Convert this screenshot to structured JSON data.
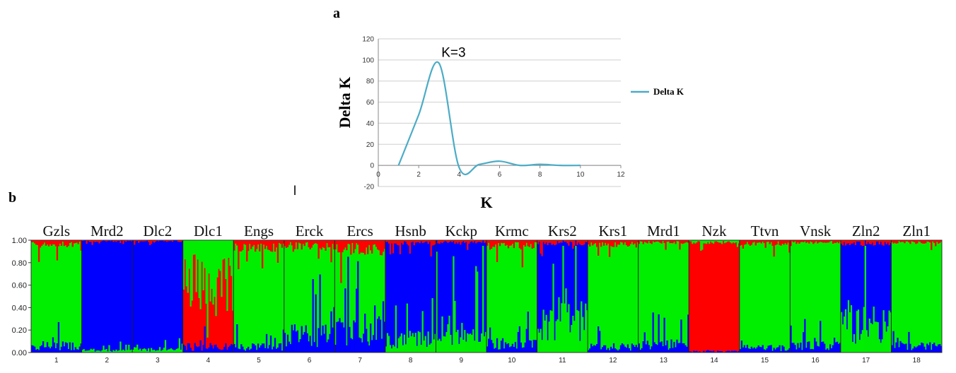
{
  "panels": {
    "a_label": "a",
    "b_label": "b",
    "stray_mark": "l"
  },
  "chart_data": [
    {
      "type": "line",
      "panel": "a",
      "title": "",
      "xlabel": "K",
      "ylabel": "Delta K",
      "xlim": [
        0,
        12
      ],
      "ylim": [
        -20,
        120
      ],
      "xticks": [
        "0",
        "2",
        "4",
        "6",
        "8",
        "10",
        "12"
      ],
      "yticks": [
        "-20",
        "0",
        "20",
        "40",
        "60",
        "80",
        "100",
        "120"
      ],
      "grid": true,
      "legend_position": "right",
      "series": [
        {
          "name": "Delta K",
          "color": "#4bacc6",
          "x": [
            1,
            2,
            3,
            4,
            5,
            6,
            7,
            8,
            9,
            10
          ],
          "y": [
            0,
            48,
            97,
            -2,
            1,
            4,
            0,
            1,
            0,
            0
          ]
        }
      ],
      "annotations": [
        {
          "text": "K=3",
          "x": 3.75,
          "y": 103
        }
      ]
    },
    {
      "type": "bar",
      "panel": "b",
      "subtype": "stacked-admixture",
      "yticks": [
        "0.00",
        "0.20",
        "0.40",
        "0.60",
        "0.80",
        "1.00"
      ],
      "ylim": [
        0,
        1
      ],
      "colors": {
        "cluster1": "#0000ff",
        "cluster2": "#00ee00",
        "cluster3": "#ff0000"
      },
      "categories": [
        {
          "num": "1",
          "label": "Gzls",
          "dominant": "cluster2",
          "share": [
            0.06,
            0.9,
            0.04
          ]
        },
        {
          "num": "2",
          "label": "Mrd2",
          "dominant": "cluster1",
          "share": [
            0.97,
            0.02,
            0.01
          ]
        },
        {
          "num": "3",
          "label": "Dlc2",
          "dominant": "cluster1",
          "share": [
            0.96,
            0.03,
            0.01
          ]
        },
        {
          "num": "4",
          "label": "Dlc1",
          "dominant": "cluster3",
          "share": [
            0.05,
            0.4,
            0.55
          ]
        },
        {
          "num": "5",
          "label": "Engs",
          "dominant": "cluster2",
          "share": [
            0.05,
            0.88,
            0.07
          ]
        },
        {
          "num": "6",
          "label": "Erck",
          "dominant": "cluster2",
          "share": [
            0.15,
            0.8,
            0.05
          ]
        },
        {
          "num": "7",
          "label": "Ercs",
          "dominant": "cluster2",
          "share": [
            0.2,
            0.72,
            0.08
          ]
        },
        {
          "num": "8",
          "label": "Hsnb",
          "dominant": "cluster1",
          "share": [
            0.85,
            0.12,
            0.03
          ]
        },
        {
          "num": "9",
          "label": "Kckp",
          "dominant": "cluster1",
          "share": [
            0.78,
            0.2,
            0.02
          ]
        },
        {
          "num": "10",
          "label": "Krmc",
          "dominant": "cluster2",
          "share": [
            0.08,
            0.87,
            0.05
          ]
        },
        {
          "num": "11",
          "label": "Krs2",
          "dominant": "cluster1",
          "share": [
            0.7,
            0.27,
            0.03
          ]
        },
        {
          "num": "12",
          "label": "Krs1",
          "dominant": "cluster2",
          "share": [
            0.05,
            0.91,
            0.04
          ]
        },
        {
          "num": "13",
          "label": "Mrd1",
          "dominant": "cluster2",
          "share": [
            0.08,
            0.9,
            0.02
          ]
        },
        {
          "num": "14",
          "label": "Nzk",
          "dominant": "cluster3",
          "share": [
            0.01,
            0.02,
            0.97
          ]
        },
        {
          "num": "15",
          "label": "Ttvn",
          "dominant": "cluster2",
          "share": [
            0.04,
            0.93,
            0.03
          ]
        },
        {
          "num": "16",
          "label": "Vnsk",
          "dominant": "cluster2",
          "share": [
            0.06,
            0.92,
            0.02
          ]
        },
        {
          "num": "17",
          "label": "Zln2",
          "dominant": "cluster1",
          "share": [
            0.72,
            0.25,
            0.03
          ]
        },
        {
          "num": "18",
          "label": "Zln1",
          "dominant": "cluster2",
          "share": [
            0.06,
            0.92,
            0.02
          ]
        }
      ]
    }
  ]
}
